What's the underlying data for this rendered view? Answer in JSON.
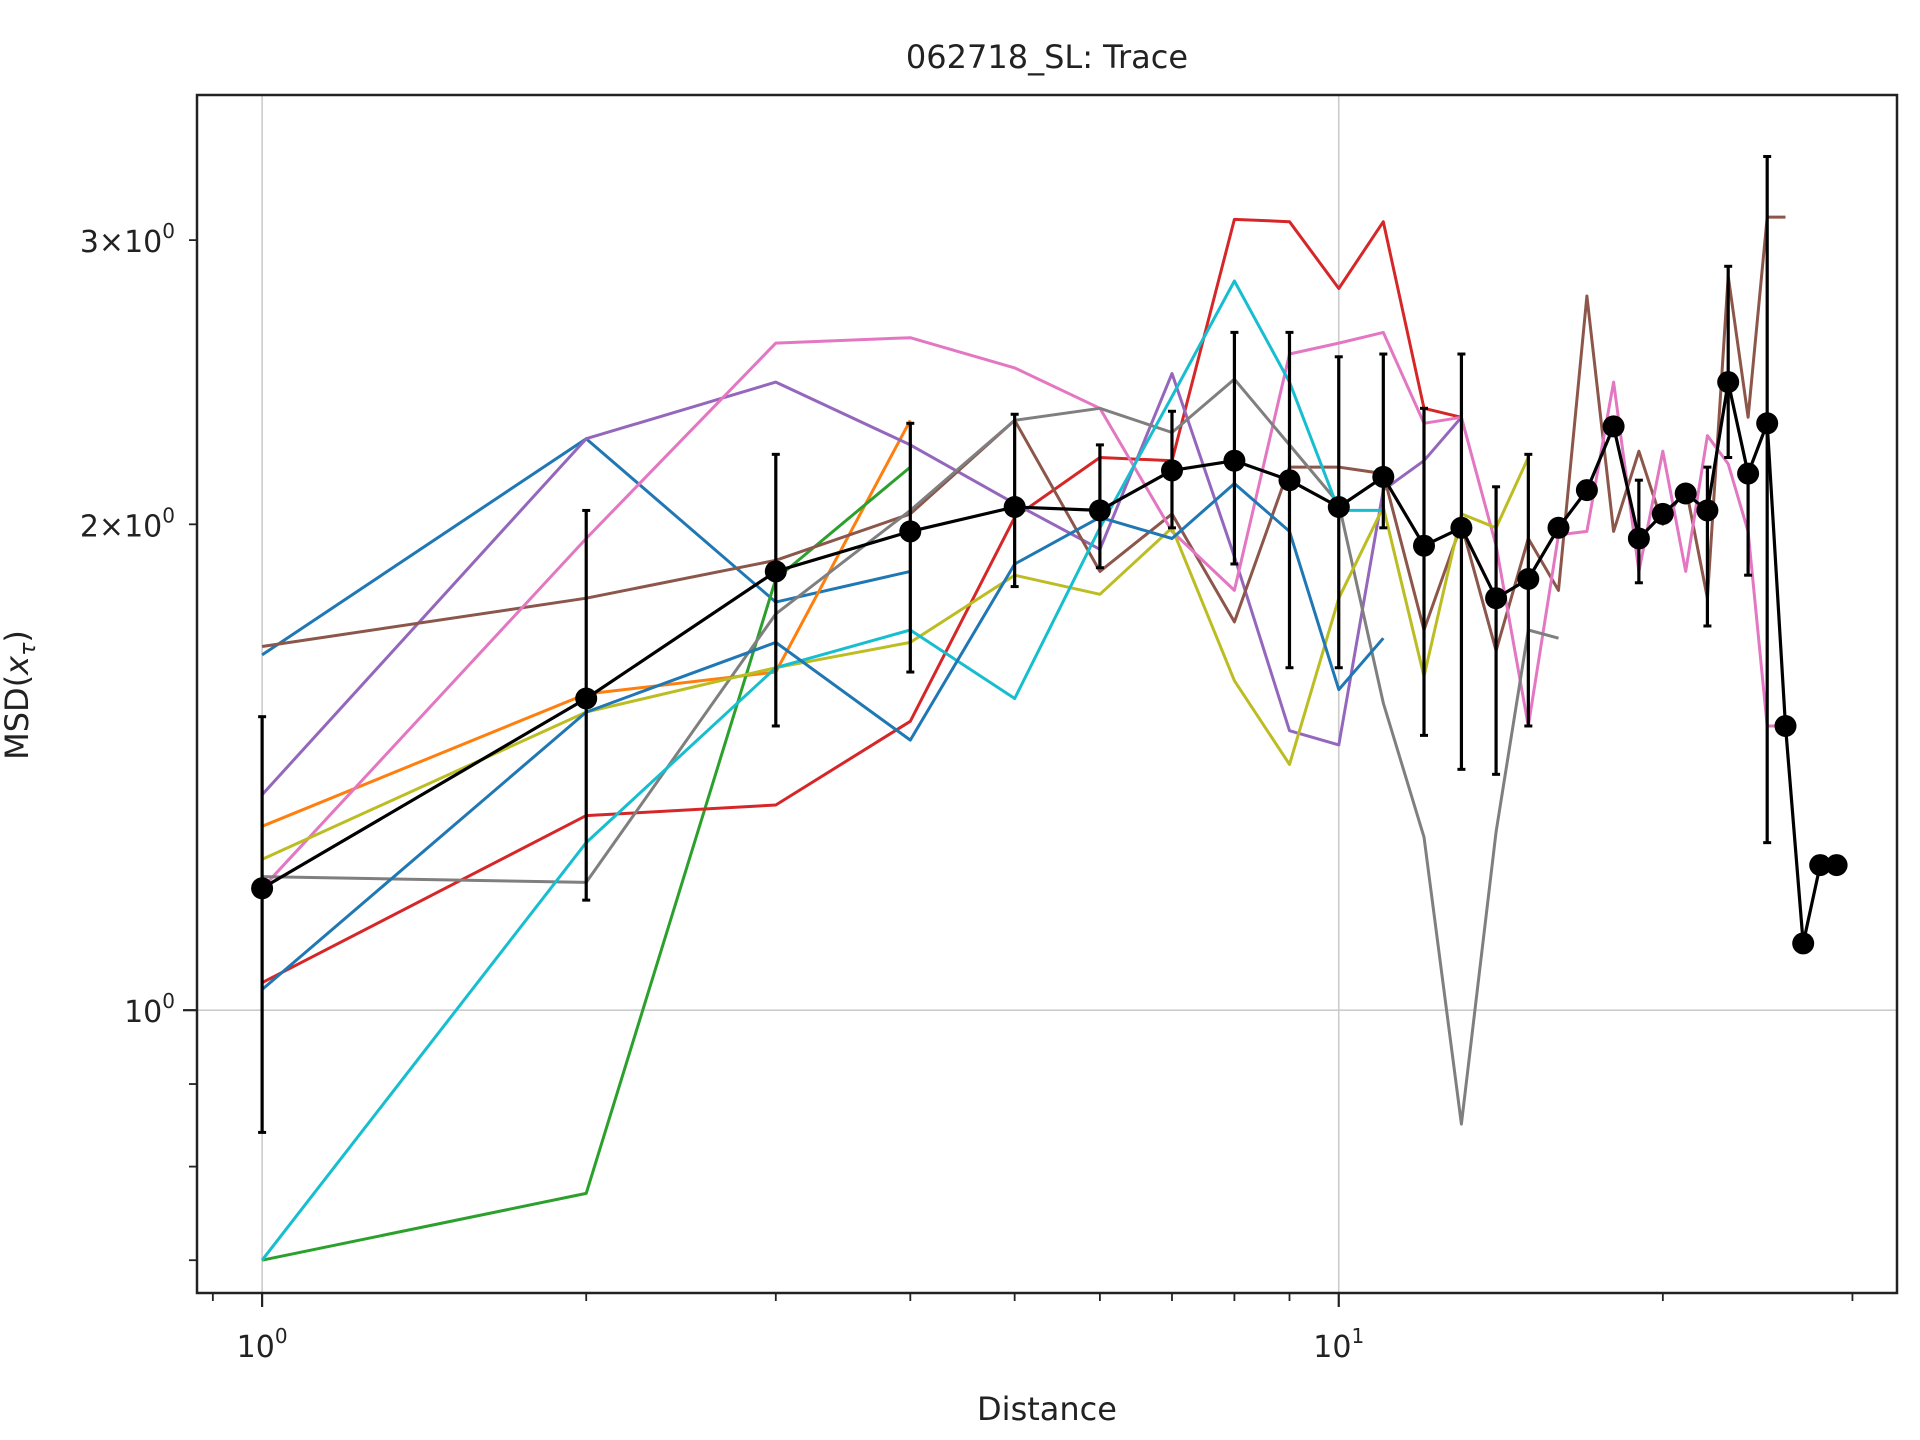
{
  "chart_data": {
    "type": "line",
    "title": "062718_SL: Trace",
    "xlabel": "Distance",
    "ylabel_prefix": "MSD(",
    "ylabel_var": "x",
    "ylabel_sub": "τ",
    "ylabel_suffix": ")",
    "xscale": "log",
    "yscale": "log",
    "xlim": [
      0.87,
      33
    ],
    "ylim": [
      0.668,
      3.69
    ],
    "grid": true,
    "legend": "none",
    "x_major_ticks": [
      {
        "value": 1,
        "base": "10",
        "exp": "0"
      },
      {
        "value": 10,
        "base": "10",
        "exp": "1"
      }
    ],
    "x_minor_ticks": [
      0.9,
      2,
      3,
      4,
      5,
      6,
      7,
      8,
      9,
      20,
      30
    ],
    "y_major_ticks": [
      {
        "value": 1,
        "base": "10",
        "exp": "0",
        "prefix": ""
      }
    ],
    "y_labeled_minor_ticks": [
      {
        "value": 2,
        "prefix": "2×",
        "base": "10",
        "exp": "0"
      },
      {
        "value": 3,
        "prefix": "3×",
        "base": "10",
        "exp": "0"
      }
    ],
    "y_minor_ticks": [
      0.7,
      0.8,
      0.9,
      2,
      3
    ],
    "series": [
      {
        "color": "#1f77b4",
        "x": [
          1,
          2,
          3,
          4
        ],
        "y": [
          1.66,
          2.26,
          1.79,
          1.87
        ]
      },
      {
        "color": "#ff7f0e",
        "x": [
          1,
          2,
          3,
          4
        ],
        "y": [
          1.3,
          1.57,
          1.62,
          2.32
        ]
      },
      {
        "color": "#2ca02c",
        "x": [
          1,
          2,
          3,
          4
        ],
        "y": [
          0.7,
          0.77,
          1.85,
          2.17
        ]
      },
      {
        "color": "#d62728",
        "x": [
          1,
          2,
          3,
          4,
          5,
          6,
          7,
          8,
          9,
          10,
          11,
          12,
          13
        ],
        "y": [
          1.04,
          1.32,
          1.34,
          1.51,
          2.02,
          2.2,
          2.19,
          3.09,
          3.08,
          2.8,
          3.08,
          2.36,
          2.33
        ]
      },
      {
        "color": "#9467bd",
        "x": [
          1,
          2,
          3,
          4,
          5,
          6,
          7,
          8,
          9,
          10,
          11,
          12,
          13
        ],
        "y": [
          1.36,
          2.26,
          2.45,
          2.24,
          2.06,
          1.93,
          2.48,
          1.91,
          1.49,
          1.46,
          2.1,
          2.19,
          2.33
        ]
      },
      {
        "color": "#8c564b",
        "x": [
          1,
          2,
          3,
          4,
          5,
          6,
          7,
          8,
          9,
          10,
          11,
          12,
          13,
          14,
          15,
          16,
          17,
          18,
          19,
          20,
          21,
          22,
          23,
          24,
          25,
          26
        ],
        "y": [
          1.68,
          1.8,
          1.9,
          2.03,
          2.32,
          1.87,
          2.03,
          1.74,
          2.17,
          2.17,
          2.15,
          1.72,
          2.0,
          1.67,
          1.96,
          1.82,
          2.77,
          1.98,
          2.22,
          2.0,
          2.11,
          1.8,
          2.85,
          2.33,
          3.1,
          3.1
        ]
      },
      {
        "color": "#e377c2",
        "x": [
          1,
          2,
          3,
          4,
          5,
          6,
          7,
          8,
          9,
          10,
          11,
          12,
          13,
          14,
          15,
          16,
          17,
          18,
          19,
          20,
          21,
          22,
          23,
          24,
          25,
          26
        ],
        "y": [
          1.19,
          1.96,
          2.59,
          2.61,
          2.5,
          2.36,
          1.98,
          1.82,
          2.55,
          2.59,
          2.63,
          2.31,
          2.33,
          1.94,
          1.5,
          1.97,
          1.98,
          2.45,
          1.87,
          2.22,
          1.87,
          2.27,
          2.18,
          1.98,
          1.5,
          1.5
        ]
      },
      {
        "color": "#7f7f7f",
        "x": [
          1,
          2,
          3,
          4,
          5,
          6,
          7,
          8,
          9,
          10,
          11,
          12,
          13,
          14,
          15,
          16
        ],
        "y": [
          1.21,
          1.2,
          1.76,
          2.04,
          2.32,
          2.36,
          2.28,
          2.46,
          2.24,
          2.06,
          1.55,
          1.28,
          0.85,
          1.29,
          1.72,
          1.7
        ]
      },
      {
        "color": "#bcbd22",
        "x": [
          1,
          2,
          3,
          4,
          5,
          6,
          7,
          8,
          9,
          10,
          11,
          12,
          13,
          14,
          15
        ],
        "y": [
          1.24,
          1.53,
          1.63,
          1.69,
          1.86,
          1.81,
          1.99,
          1.6,
          1.42,
          1.8,
          2.05,
          1.61,
          2.03,
          1.99,
          2.2
        ]
      },
      {
        "color": "#17becf",
        "x": [
          1,
          2,
          3,
          4,
          5,
          6,
          7,
          8,
          9,
          10,
          11
        ],
        "y": [
          0.7,
          1.27,
          1.63,
          1.72,
          1.56,
          1.99,
          2.4,
          2.83,
          2.45,
          2.04,
          2.04
        ]
      },
      {
        "color": "#1f77b4",
        "x": [
          1,
          2,
          3,
          4,
          5,
          6,
          7,
          8,
          9,
          10,
          11
        ],
        "y": [
          1.03,
          1.53,
          1.69,
          1.47,
          1.89,
          2.02,
          1.96,
          2.12,
          1.98,
          1.58,
          1.7
        ]
      }
    ],
    "mean_series": {
      "color": "#000000",
      "x": [
        1,
        2,
        3,
        4,
        5,
        6,
        7,
        8,
        9,
        10,
        11,
        12,
        13,
        14,
        15,
        16,
        17,
        18,
        19,
        20,
        21,
        22,
        23,
        24,
        25,
        26,
        27,
        28,
        29
      ],
      "y": [
        1.19,
        1.56,
        1.87,
        1.98,
        2.05,
        2.04,
        2.16,
        2.19,
        2.13,
        2.05,
        2.14,
        1.94,
        1.99,
        1.8,
        1.85,
        1.99,
        2.1,
        2.3,
        1.96,
        2.03,
        2.09,
        2.04,
        2.45,
        2.15,
        2.31,
        1.5,
        1.1,
        1.23,
        1.23
      ],
      "err_low": [
        0.84,
        1.17,
        1.5,
        1.62,
        1.83,
        1.88,
        1.99,
        1.89,
        1.63,
        1.63,
        1.99,
        1.48,
        1.41,
        1.4,
        1.5,
        null,
        null,
        null,
        1.84,
        null,
        null,
        1.73,
        2.2,
        1.86,
        1.27,
        null,
        null,
        null,
        null
      ],
      "err_high": [
        1.52,
        2.04,
        2.21,
        2.31,
        2.34,
        2.24,
        2.35,
        2.63,
        2.63,
        2.54,
        2.55,
        2.36,
        2.55,
        2.11,
        2.21,
        null,
        null,
        null,
        2.13,
        null,
        null,
        2.17,
        2.89,
        2.17,
        3.38,
        null,
        null,
        null,
        null
      ]
    }
  }
}
